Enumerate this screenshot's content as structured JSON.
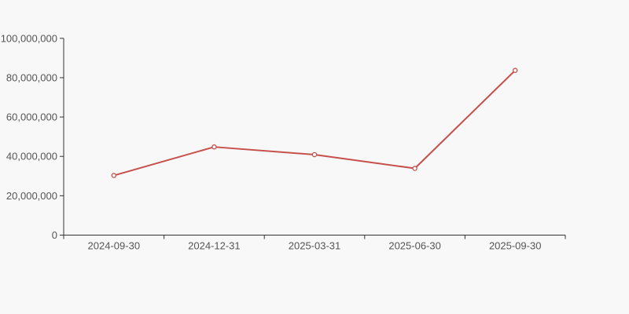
{
  "chart_data": {
    "type": "line",
    "title": "",
    "xlabel": "",
    "ylabel": "",
    "categories": [
      "2024-09-30",
      "2024-12-31",
      "2025-03-31",
      "2025-06-30",
      "2025-09-30"
    ],
    "series": [
      {
        "name": "value",
        "values": [
          30300000,
          44800000,
          40900000,
          33900000,
          83700000
        ]
      }
    ],
    "ylim": [
      0,
      100000000
    ],
    "yticks": [
      {
        "value": 0,
        "label": "0"
      },
      {
        "value": 20000000,
        "label": "20,000,000"
      },
      {
        "value": 40000000,
        "label": "40,000,000"
      },
      {
        "value": 60000000,
        "label": "60,000,000"
      },
      {
        "value": 80000000,
        "label": "80,000,000"
      },
      {
        "value": 100000000,
        "label": "100,000,000"
      }
    ],
    "grid": false,
    "legend_position": "none",
    "marker_style": "open-circle",
    "colors": {
      "line": "#c5504c",
      "marker_fill": "#fefefe",
      "axis": "#333333",
      "tick_label": "#555555",
      "background": "#f8f8f8"
    }
  }
}
